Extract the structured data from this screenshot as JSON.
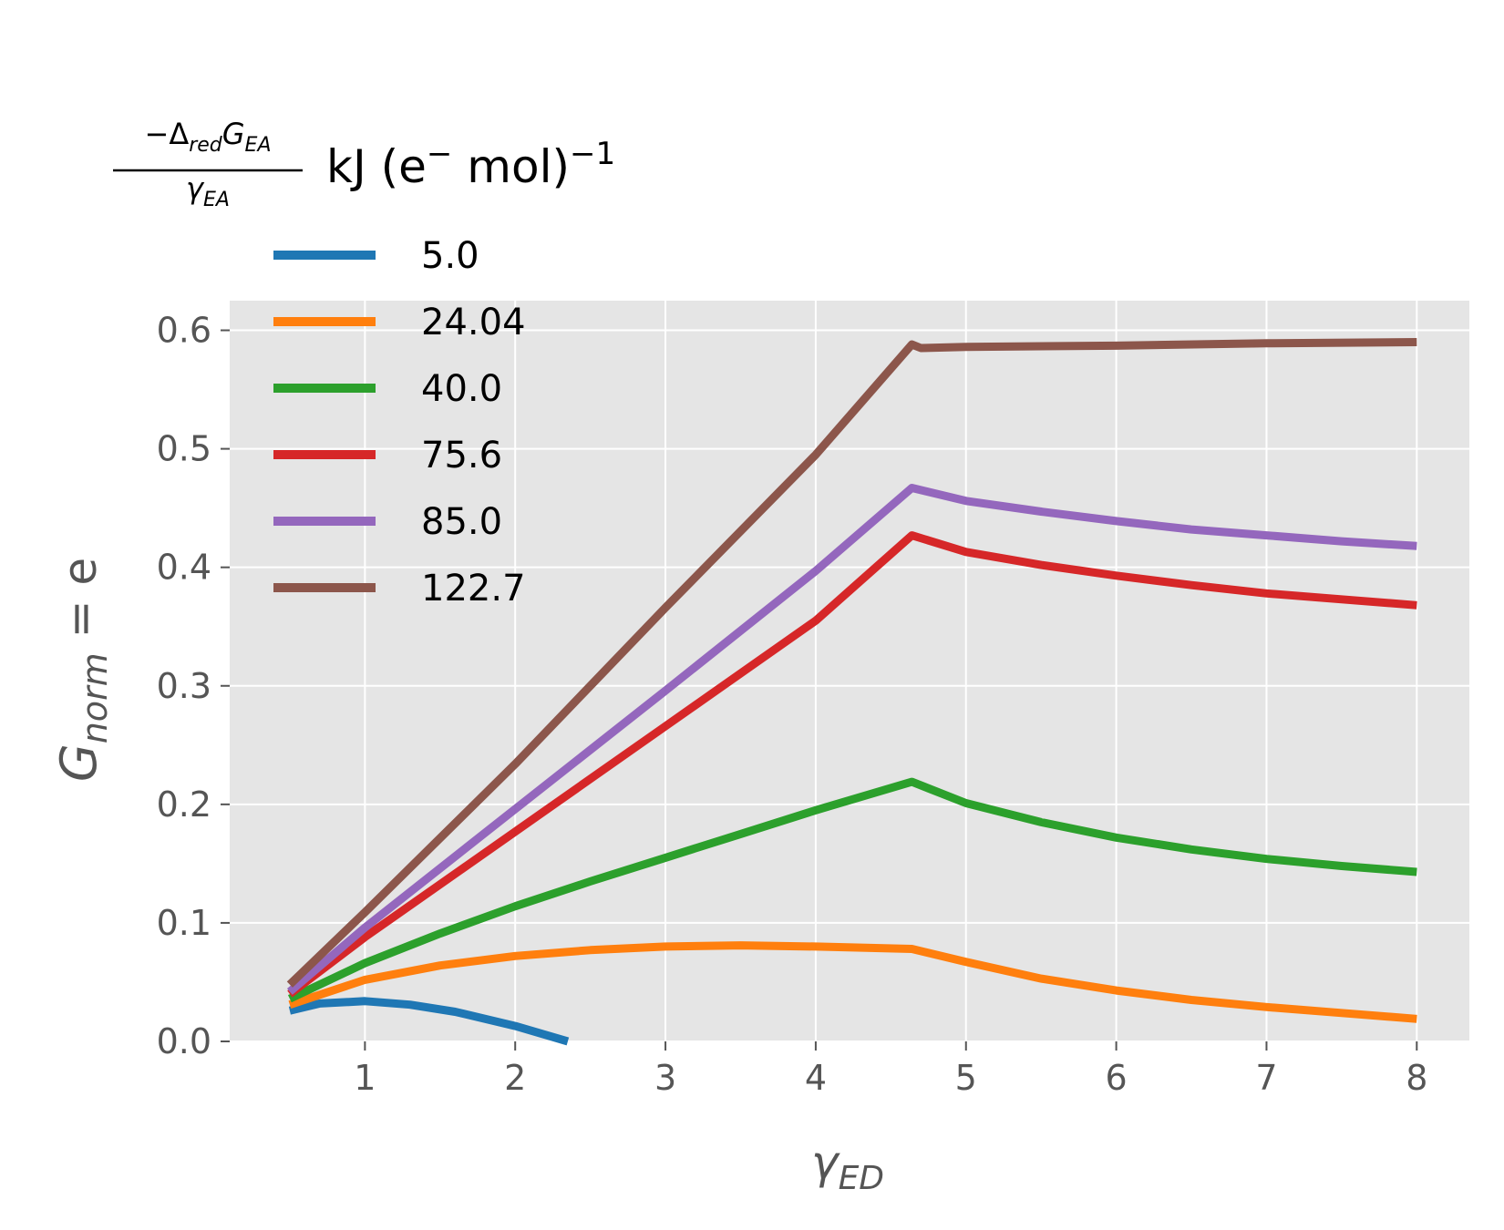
{
  "chart_data": {
    "type": "line",
    "xlabel_main": "γ",
    "xlabel_sub": "ED",
    "ylabel_main": "G",
    "ylabel_sub": "norm",
    "ylabel_suffix": " = e",
    "legend": {
      "title_numerator_prefix": "−Δ",
      "title_numerator_sub1": "red",
      "title_numerator_mid": "G",
      "title_numerator_sub2": "EA",
      "title_denominator": "γ",
      "title_denominator_sub": "EA",
      "title_units": "kJ (e",
      "title_units_sup1": "−",
      "title_units_mid": " mol)",
      "title_units_sup2": "−1",
      "placement": "upper-left"
    },
    "xlim": [
      0.1,
      8.35
    ],
    "ylim": [
      0,
      0.625
    ],
    "xticks": [
      1,
      2,
      3,
      4,
      5,
      6,
      7,
      8
    ],
    "xtick_labels": [
      "1",
      "2",
      "3",
      "4",
      "5",
      "6",
      "7",
      "8"
    ],
    "yticks": [
      0.0,
      0.1,
      0.2,
      0.3,
      0.4,
      0.5,
      0.6
    ],
    "ytick_labels": [
      "0.0",
      "0.1",
      "0.2",
      "0.3",
      "0.4",
      "0.5",
      "0.6"
    ],
    "grid": true,
    "series": [
      {
        "name": "5.0",
        "color": "#1f77b4",
        "points": [
          [
            0.5,
            0.026
          ],
          [
            0.7,
            0.032
          ],
          [
            1.0,
            0.034
          ],
          [
            1.3,
            0.031
          ],
          [
            1.6,
            0.025
          ],
          [
            2.0,
            0.013
          ],
          [
            2.35,
            0.0
          ]
        ]
      },
      {
        "name": "24.04",
        "color": "#ff7f0e",
        "points": [
          [
            0.5,
            0.031
          ],
          [
            1.0,
            0.052
          ],
          [
            1.5,
            0.064
          ],
          [
            2.0,
            0.072
          ],
          [
            2.5,
            0.077
          ],
          [
            3.0,
            0.08
          ],
          [
            3.5,
            0.081
          ],
          [
            4.0,
            0.08
          ],
          [
            4.64,
            0.078
          ],
          [
            5.0,
            0.067
          ],
          [
            5.5,
            0.053
          ],
          [
            6.0,
            0.043
          ],
          [
            6.5,
            0.035
          ],
          [
            7.0,
            0.029
          ],
          [
            7.5,
            0.024
          ],
          [
            8.0,
            0.019
          ]
        ]
      },
      {
        "name": "40.0",
        "color": "#2ca02c",
        "points": [
          [
            0.5,
            0.036
          ],
          [
            1.0,
            0.066
          ],
          [
            1.5,
            0.091
          ],
          [
            2.0,
            0.114
          ],
          [
            2.5,
            0.135
          ],
          [
            3.0,
            0.155
          ],
          [
            3.5,
            0.175
          ],
          [
            4.0,
            0.195
          ],
          [
            4.64,
            0.219
          ],
          [
            5.0,
            0.201
          ],
          [
            5.5,
            0.185
          ],
          [
            6.0,
            0.172
          ],
          [
            6.5,
            0.162
          ],
          [
            7.0,
            0.154
          ],
          [
            7.5,
            0.148
          ],
          [
            8.0,
            0.143
          ]
        ]
      },
      {
        "name": "75.6",
        "color": "#d62728",
        "points": [
          [
            0.5,
            0.04
          ],
          [
            1.0,
            0.088
          ],
          [
            2.0,
            0.177
          ],
          [
            3.0,
            0.266
          ],
          [
            4.0,
            0.355
          ],
          [
            4.64,
            0.427
          ],
          [
            5.0,
            0.413
          ],
          [
            5.5,
            0.402
          ],
          [
            6.0,
            0.393
          ],
          [
            6.5,
            0.385
          ],
          [
            7.0,
            0.378
          ],
          [
            7.5,
            0.373
          ],
          [
            8.0,
            0.368
          ]
        ]
      },
      {
        "name": "85.0",
        "color": "#9467bd",
        "points": [
          [
            0.5,
            0.042
          ],
          [
            1.0,
            0.096
          ],
          [
            2.0,
            0.196
          ],
          [
            3.0,
            0.296
          ],
          [
            4.0,
            0.397
          ],
          [
            4.64,
            0.467
          ],
          [
            5.0,
            0.456
          ],
          [
            5.5,
            0.447
          ],
          [
            6.0,
            0.439
          ],
          [
            6.5,
            0.432
          ],
          [
            7.0,
            0.427
          ],
          [
            7.5,
            0.422
          ],
          [
            8.0,
            0.418
          ]
        ]
      },
      {
        "name": "122.7",
        "color": "#8c564b",
        "points": [
          [
            0.5,
            0.048
          ],
          [
            1.0,
            0.109
          ],
          [
            2.0,
            0.234
          ],
          [
            3.0,
            0.366
          ],
          [
            4.0,
            0.495
          ],
          [
            4.64,
            0.588
          ],
          [
            4.7,
            0.585
          ],
          [
            5.0,
            0.586
          ],
          [
            6.0,
            0.587
          ],
          [
            7.0,
            0.589
          ],
          [
            8.0,
            0.59
          ]
        ]
      }
    ]
  }
}
